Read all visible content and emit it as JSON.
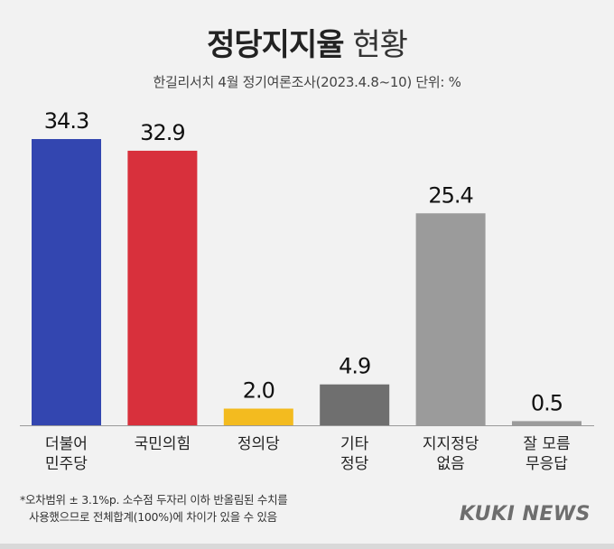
{
  "title_main": "정당지지율",
  "title_sub": "현황",
  "subtitle": "한길리서치 4월 정기여론조사(2023.4.8~10) 단위: %",
  "footnote": {
    "line1": "*오차범위 ± 3.1%p. 소수점 두자리 이하 반올림된 수치를",
    "line2": "사용했으므로 전체합계(100%)에 차이가 있을 수 있음"
  },
  "logo": "KUKI NEWS",
  "chart_data": {
    "type": "bar",
    "categories": [
      [
        "더불어",
        "민주당"
      ],
      [
        "국민의힘"
      ],
      [
        "정의당"
      ],
      [
        "기타",
        "정당"
      ],
      [
        "지지정당",
        "없음"
      ],
      [
        "잘 모름",
        "무응답"
      ]
    ],
    "values": [
      34.3,
      32.9,
      2.0,
      4.9,
      25.4,
      0.5
    ],
    "value_labels": [
      "34.3",
      "32.9",
      "2.0",
      "4.9",
      "25.4",
      "0.5"
    ],
    "colors": [
      "#3346b0",
      "#d8303c",
      "#f3bb1f",
      "#6f6f6f",
      "#9b9b9b",
      "#9b9b9b"
    ],
    "ylim": [
      0,
      34.3
    ],
    "grid": false,
    "legend": "none"
  }
}
